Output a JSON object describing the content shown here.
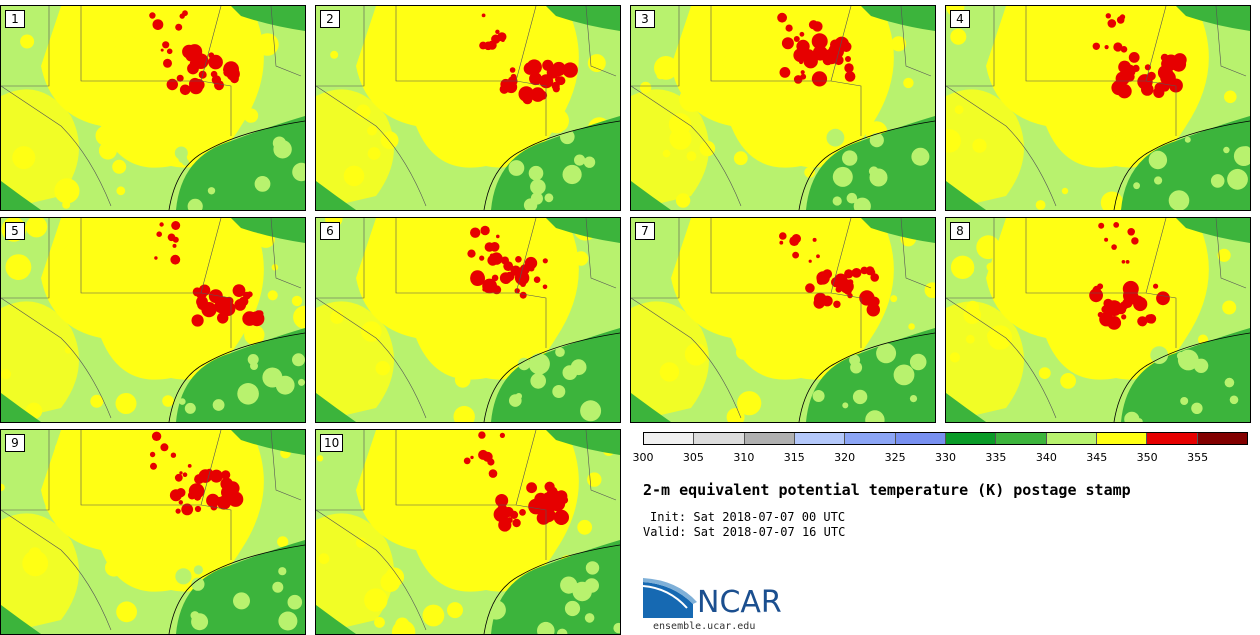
{
  "panels": [
    {
      "label": "1"
    },
    {
      "label": "2"
    },
    {
      "label": "3"
    },
    {
      "label": "4"
    },
    {
      "label": "5"
    },
    {
      "label": "6"
    },
    {
      "label": "7"
    },
    {
      "label": "8"
    },
    {
      "label": "9"
    },
    {
      "label": "10"
    }
  ],
  "colorbar": {
    "colors": [
      "#f0f0f0",
      "#dcdcdc",
      "#b0b0b0",
      "#b4c8fa",
      "#8ca5f5",
      "#7890f0",
      "#0a9b28",
      "#3cb43c",
      "#b8f26e",
      "#ffff14",
      "#e60000",
      "#820000"
    ],
    "ticks": [
      "300",
      "305",
      "310",
      "315",
      "320",
      "325",
      "330",
      "335",
      "340",
      "345",
      "350",
      "355"
    ]
  },
  "title": "2-m equivalent potential temperature (K) postage stamp",
  "init": "Init: Sat 2018-07-07 00 UTC",
  "valid": "Valid: Sat 2018-07-07 16 UTC",
  "logo": {
    "text": "NCAR",
    "site": "ensemble.ucar.edu"
  }
}
